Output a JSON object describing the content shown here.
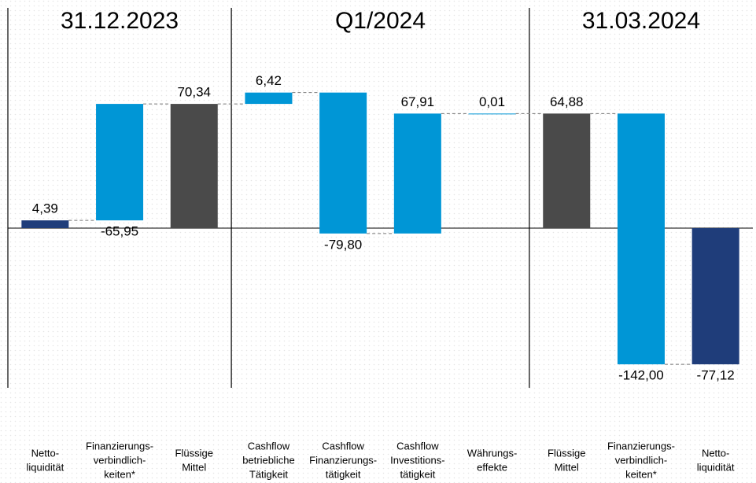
{
  "chart_data": {
    "type": "waterfall",
    "sections": [
      "31.12.2023",
      "Q1/2024",
      "31.03.2024"
    ],
    "section_sizes": [
      3,
      4,
      3
    ],
    "categories": [
      [
        "Netto-",
        "liquidität"
      ],
      [
        "Finanzierungs-",
        "verbindlich-",
        "keiten*"
      ],
      [
        "Flüssige",
        "Mittel"
      ],
      [
        "Cashflow",
        "betriebliche",
        "Tätigkeit"
      ],
      [
        "Cashflow",
        "Finanzierungs-",
        "tätigkeit"
      ],
      [
        "Cashflow",
        "Investitions-",
        "tätigkeit"
      ],
      [
        "Währungs-",
        "effekte"
      ],
      [
        "Flüssige",
        "Mittel"
      ],
      [
        "Finanzierungs-",
        "verbindlich-",
        "keiten*"
      ],
      [
        "Netto-",
        "liquidität"
      ]
    ],
    "values": [
      4.39,
      -65.95,
      70.34,
      6.42,
      -79.8,
      67.91,
      0.01,
      64.88,
      -142.0,
      -77.12
    ],
    "value_labels": [
      "4,39",
      "-65,95",
      "70,34",
      "6,42",
      "-79,80",
      "67,91",
      "0,01",
      "64,88",
      "-142,00",
      "-77,12"
    ],
    "measures": [
      "total",
      "reverse",
      "total",
      "relative",
      "relative",
      "relative",
      "relative",
      "total",
      "relative",
      "total"
    ],
    "colors": [
      "#1f3d7a",
      "#0096d6",
      "#4a4a4a",
      "#0096d6",
      "#0096d6",
      "#0096d6",
      "#0096d6",
      "#4a4a4a",
      "#0096d6",
      "#1f3d7a"
    ]
  }
}
